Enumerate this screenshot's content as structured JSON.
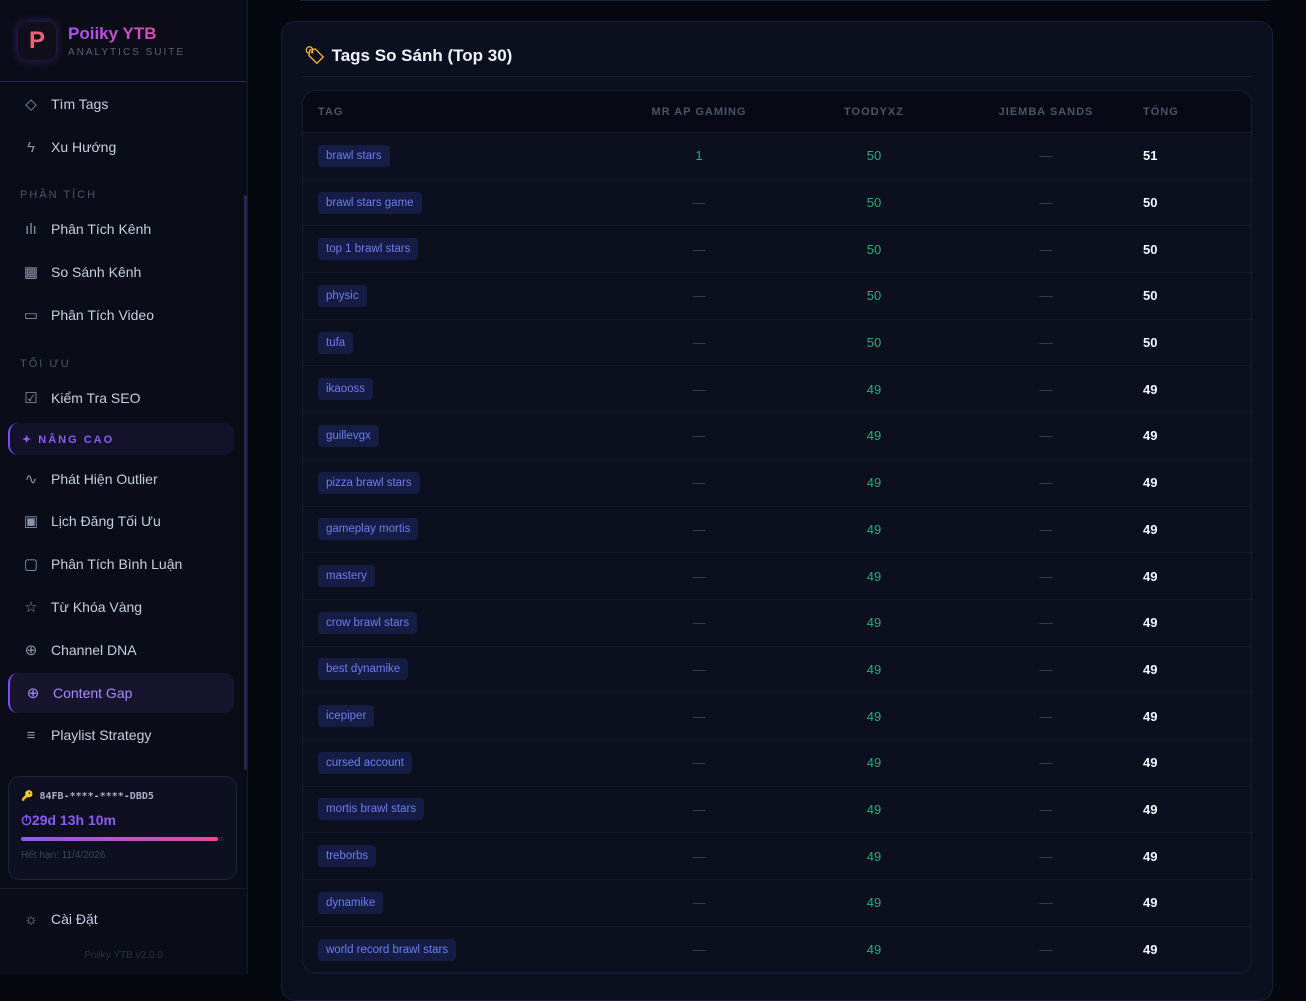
{
  "brand": {
    "title": "Poiiky YTB",
    "subtitle": "ANALYTICS SUITE",
    "logo_letter": "P"
  },
  "sidebar": {
    "items_top": [
      {
        "label": "Tìm Tags",
        "icon": "tag-icon"
      },
      {
        "label": "Xu Hướng",
        "icon": "bolt-icon"
      }
    ],
    "section_analysis": "PHÂN TÍCH",
    "analysis": [
      {
        "label": "Phân Tích Kênh",
        "icon": "bar-chart-icon"
      },
      {
        "label": "So Sánh Kênh",
        "icon": "grid-icon"
      },
      {
        "label": "Phân Tích Video",
        "icon": "video-icon"
      }
    ],
    "section_optimize": "TỐI ƯU",
    "optimize": [
      {
        "label": "Kiểm Tra SEO",
        "icon": "check-square-icon"
      }
    ],
    "section_advanced": "✦ NÂNG CAO",
    "advanced": [
      {
        "label": "Phát Hiện Outlier",
        "icon": "activity-icon"
      },
      {
        "label": "Lịch Đăng Tối Ưu",
        "icon": "calendar-icon"
      },
      {
        "label": "Phân Tích Bình Luận",
        "icon": "message-icon"
      },
      {
        "label": "Từ Khóa Vàng",
        "icon": "star-icon"
      },
      {
        "label": "Channel DNA",
        "icon": "globe-icon"
      },
      {
        "label": "Content Gap",
        "icon": "plus-circle-icon",
        "active": true
      },
      {
        "label": "Playlist Strategy",
        "icon": "list-icon"
      }
    ],
    "license": {
      "key": "84FB-****-****-DBD5",
      "timer": "29d 13h 10m",
      "progress": 0.97,
      "expiry": "Hết hạn: 11/4/2026"
    },
    "settings": "Cài Đặt",
    "version": "Poiiky YTB v2.0.0"
  },
  "card": {
    "title": "Tags So Sánh (Top 30)",
    "columns": [
      "TAG",
      "MR AP GAMING",
      "TOODYXZ",
      "JIEMBA SANDS",
      "TỔNG"
    ],
    "rows": [
      [
        "brawl stars",
        "1",
        "50",
        "—",
        "51"
      ],
      [
        "brawl stars game",
        "—",
        "50",
        "—",
        "50"
      ],
      [
        "top 1 brawl stars",
        "—",
        "50",
        "—",
        "50"
      ],
      [
        "physic",
        "—",
        "50",
        "—",
        "50"
      ],
      [
        "tufa",
        "—",
        "50",
        "—",
        "50"
      ],
      [
        "ikaooss",
        "—",
        "49",
        "—",
        "49"
      ],
      [
        "guillevgx",
        "—",
        "49",
        "—",
        "49"
      ],
      [
        "pizza brawl stars",
        "—",
        "49",
        "—",
        "49"
      ],
      [
        "gameplay mortis",
        "—",
        "49",
        "—",
        "49"
      ],
      [
        "mastery",
        "—",
        "49",
        "—",
        "49"
      ],
      [
        "crow brawl stars",
        "—",
        "49",
        "—",
        "49"
      ],
      [
        "best dynamike",
        "—",
        "49",
        "—",
        "49"
      ],
      [
        "icepiper",
        "—",
        "49",
        "—",
        "49"
      ],
      [
        "cursed account",
        "—",
        "49",
        "—",
        "49"
      ],
      [
        "mortis brawl stars",
        "—",
        "49",
        "—",
        "49"
      ],
      [
        "treborbs",
        "—",
        "49",
        "—",
        "49"
      ],
      [
        "dynamike",
        "—",
        "49",
        "—",
        "49"
      ],
      [
        "world record brawl stars",
        "—",
        "49",
        "—",
        "49"
      ]
    ]
  },
  "colors": {
    "accent": "#8b5cf6",
    "positive": "#22b07d",
    "tag_text": "#6f7cf0"
  }
}
